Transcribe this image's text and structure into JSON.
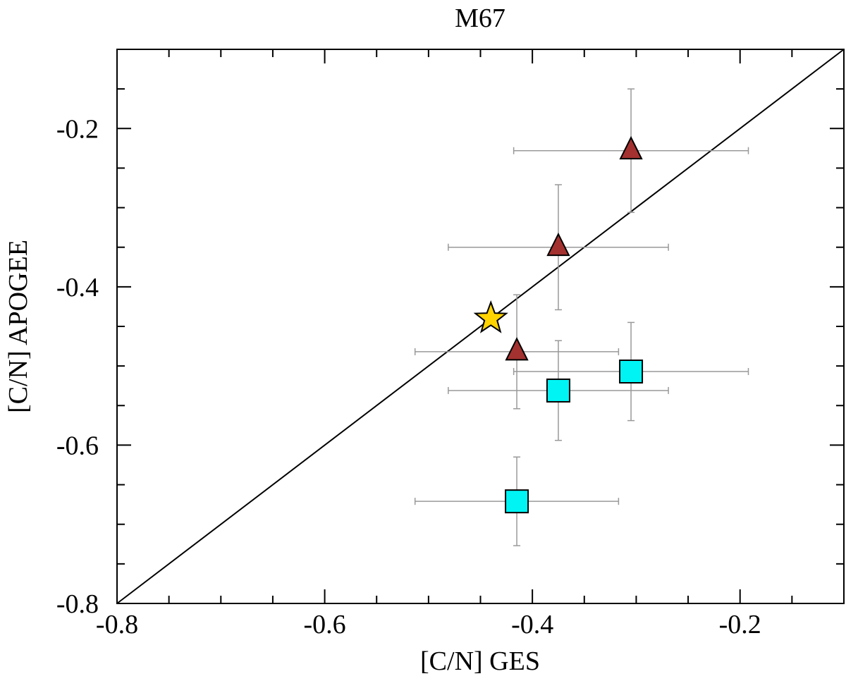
{
  "chart_data": {
    "type": "scatter",
    "title": "M67",
    "xlabel": "[C/N] GES",
    "ylabel": "[C/N] APOGEE",
    "xlim": [
      -0.8,
      -0.1
    ],
    "ylim": [
      -0.8,
      -0.1
    ],
    "x_ticks": [
      -0.8,
      -0.6,
      -0.4,
      -0.2
    ],
    "x_tick_labels": [
      "-0.8",
      "-0.6",
      "-0.4",
      "-0.2"
    ],
    "y_ticks": [
      -0.8,
      -0.6,
      -0.4,
      -0.2
    ],
    "y_tick_labels": [
      "-0.8",
      "-0.6",
      "-0.4",
      "-0.2"
    ],
    "minor_step": 0.05,
    "grid": false,
    "reference_line": {
      "name": "one-to-one line",
      "x": [
        -0.8,
        -0.1
      ],
      "y": [
        -0.8,
        -0.1
      ]
    },
    "series": [
      {
        "name": "triangles",
        "marker": "triangle",
        "color": "#a3312f",
        "points": [
          {
            "x": -0.305,
            "y": -0.228,
            "xerr": 0.113,
            "yerr": 0.078
          },
          {
            "x": -0.375,
            "y": -0.35,
            "xerr": 0.106,
            "yerr": 0.079
          },
          {
            "x": -0.415,
            "y": -0.482,
            "xerr": 0.098,
            "yerr": 0.072
          }
        ]
      },
      {
        "name": "squares",
        "marker": "square",
        "color": "#00f4f4",
        "points": [
          {
            "x": -0.305,
            "y": -0.507,
            "xerr": 0.113,
            "yerr": 0.062
          },
          {
            "x": -0.375,
            "y": -0.531,
            "xerr": 0.106,
            "yerr": 0.063
          },
          {
            "x": -0.415,
            "y": -0.671,
            "xerr": 0.098,
            "yerr": 0.056
          }
        ]
      },
      {
        "name": "star",
        "marker": "star",
        "color": "#ffd400",
        "points": [
          {
            "x": -0.44,
            "y": -0.44
          }
        ]
      }
    ]
  }
}
